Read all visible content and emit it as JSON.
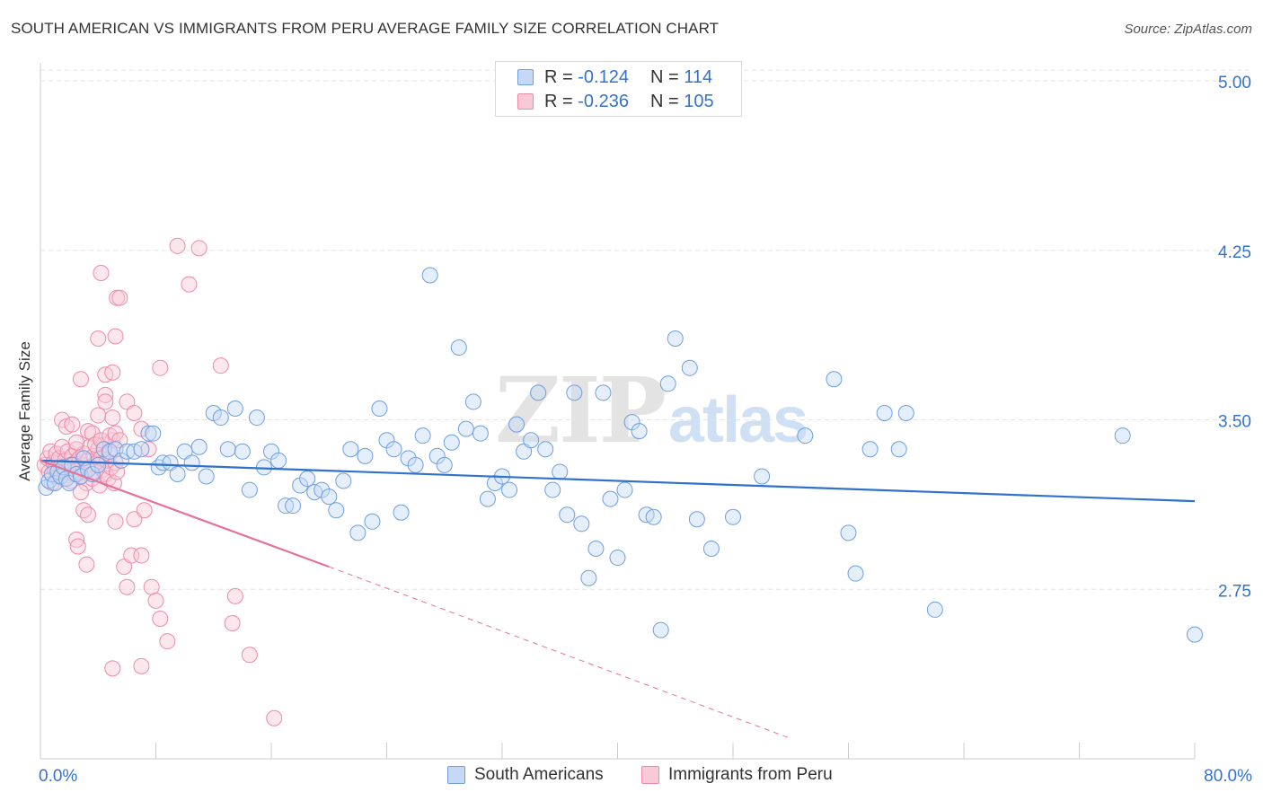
{
  "header": {
    "title": "SOUTH AMERICAN VS IMMIGRANTS FROM PERU AVERAGE FAMILY SIZE CORRELATION CHART",
    "source": "Source: ZipAtlas.com"
  },
  "watermark": {
    "part1": "ZIP",
    "part2": "atlas"
  },
  "stats_legend": {
    "series1": {
      "r_label": "R =",
      "r_value": "-0.124",
      "n_label": "N =",
      "n_value": "114"
    },
    "series2": {
      "r_label": "R =",
      "r_value": "-0.236",
      "n_label": "N =",
      "n_value": "105"
    }
  },
  "colors": {
    "blue": "#6f9fe0",
    "blue_fill": "#c5d9f6",
    "blue_line": "#2f72cc",
    "pink": "#ee8aa9",
    "pink_fill": "#f8cad8",
    "pink_line": "#e5729b",
    "tick_text": "#3572c9",
    "grid": "#e3e3e3"
  },
  "chart_data": {
    "type": "scatter",
    "title": "SOUTH AMERICAN VS IMMIGRANTS FROM PERU AVERAGE FAMILY SIZE CORRELATION CHART",
    "xlabel": "",
    "ylabel": "Average Family Size",
    "xlim": [
      0,
      80
    ],
    "ylim": [
      2.0,
      5.08
    ],
    "x_tick_labels": [
      "0.0%",
      "80.0%"
    ],
    "y_ticks": [
      2.75,
      3.5,
      4.25,
      5.0
    ],
    "y_tick_labels": [
      "2.75",
      "3.50",
      "4.25",
      "5.00"
    ],
    "grid": true,
    "legend": [
      "South Americans",
      "Immigrants from Peru"
    ],
    "legend_position": "bottom-center",
    "series": [
      {
        "name": "South Americans",
        "r": -0.124,
        "n": 114,
        "trend": {
          "x": [
            0,
            80
          ],
          "y": [
            3.32,
            3.14
          ]
        },
        "points": [
          [
            0.4,
            3.2
          ],
          [
            0.6,
            3.23
          ],
          [
            0.8,
            3.26
          ],
          [
            1.0,
            3.22
          ],
          [
            1.2,
            3.27
          ],
          [
            1.4,
            3.25
          ],
          [
            1.6,
            3.29
          ],
          [
            1.8,
            3.24
          ],
          [
            2.0,
            3.22
          ],
          [
            2.2,
            3.3
          ],
          [
            2.5,
            3.26
          ],
          [
            2.8,
            3.25
          ],
          [
            3.0,
            3.33
          ],
          [
            3.3,
            3.28
          ],
          [
            3.6,
            3.26
          ],
          [
            4.0,
            3.3
          ],
          [
            4.4,
            3.37
          ],
          [
            4.8,
            3.36
          ],
          [
            5.2,
            3.37
          ],
          [
            5.6,
            3.32
          ],
          [
            6.0,
            3.36
          ],
          [
            6.5,
            3.36
          ],
          [
            7.0,
            3.37
          ],
          [
            7.5,
            3.44
          ],
          [
            7.8,
            3.44
          ],
          [
            8.2,
            3.29
          ],
          [
            8.5,
            3.31
          ],
          [
            9.0,
            3.31
          ],
          [
            9.5,
            3.26
          ],
          [
            10.0,
            3.36
          ],
          [
            10.5,
            3.31
          ],
          [
            11.0,
            3.38
          ],
          [
            11.5,
            3.25
          ],
          [
            12.0,
            3.53
          ],
          [
            12.5,
            3.51
          ],
          [
            13.0,
            3.37
          ],
          [
            13.5,
            3.55
          ],
          [
            14.0,
            3.36
          ],
          [
            14.5,
            3.19
          ],
          [
            15.0,
            3.51
          ],
          [
            15.5,
            3.29
          ],
          [
            16.0,
            3.36
          ],
          [
            16.5,
            3.32
          ],
          [
            17.0,
            3.12
          ],
          [
            17.5,
            3.12
          ],
          [
            18.0,
            3.21
          ],
          [
            18.5,
            3.24
          ],
          [
            19.0,
            3.18
          ],
          [
            19.5,
            3.19
          ],
          [
            20.0,
            3.16
          ],
          [
            20.5,
            3.1
          ],
          [
            21.0,
            3.23
          ],
          [
            21.5,
            3.37
          ],
          [
            22.0,
            3.0
          ],
          [
            22.5,
            3.34
          ],
          [
            23.0,
            3.05
          ],
          [
            23.5,
            3.55
          ],
          [
            24.0,
            3.41
          ],
          [
            24.5,
            3.37
          ],
          [
            25.0,
            3.09
          ],
          [
            25.5,
            3.33
          ],
          [
            26.0,
            3.3
          ],
          [
            26.5,
            3.43
          ],
          [
            27.0,
            4.14
          ],
          [
            27.5,
            3.34
          ],
          [
            28.0,
            3.3
          ],
          [
            28.5,
            3.4
          ],
          [
            29.0,
            3.82
          ],
          [
            29.5,
            3.46
          ],
          [
            30.0,
            3.58
          ],
          [
            30.5,
            3.44
          ],
          [
            31.0,
            3.15
          ],
          [
            31.5,
            3.22
          ],
          [
            32.0,
            3.25
          ],
          [
            32.5,
            3.19
          ],
          [
            33.0,
            3.48
          ],
          [
            33.5,
            3.36
          ],
          [
            34.0,
            3.41
          ],
          [
            34.5,
            3.62
          ],
          [
            35.0,
            3.37
          ],
          [
            35.5,
            3.19
          ],
          [
            36.0,
            3.27
          ],
          [
            36.5,
            3.08
          ],
          [
            37.0,
            3.62
          ],
          [
            37.5,
            3.04
          ],
          [
            38.0,
            2.8
          ],
          [
            38.5,
            2.93
          ],
          [
            39.0,
            3.62
          ],
          [
            39.5,
            3.15
          ],
          [
            40.0,
            2.89
          ],
          [
            40.5,
            3.19
          ],
          [
            41.0,
            3.49
          ],
          [
            41.5,
            3.45
          ],
          [
            42.0,
            3.08
          ],
          [
            42.5,
            3.07
          ],
          [
            43.0,
            2.57
          ],
          [
            43.5,
            3.66
          ],
          [
            44.0,
            3.86
          ],
          [
            45.0,
            3.73
          ],
          [
            45.5,
            3.06
          ],
          [
            46.5,
            2.93
          ],
          [
            48.0,
            3.07
          ],
          [
            50.0,
            3.25
          ],
          [
            53.0,
            3.43
          ],
          [
            55.0,
            3.68
          ],
          [
            56.0,
            3.0
          ],
          [
            56.5,
            2.82
          ],
          [
            57.5,
            3.37
          ],
          [
            58.5,
            3.53
          ],
          [
            59.5,
            3.37
          ],
          [
            60.0,
            3.53
          ],
          [
            62.0,
            2.66
          ],
          [
            75.0,
            3.43
          ],
          [
            80.0,
            2.55
          ]
        ]
      },
      {
        "name": "Immigrants from Peru",
        "r": -0.236,
        "n": 105,
        "trend": {
          "x": [
            0,
            20
          ],
          "y": [
            3.32,
            2.85
          ]
        },
        "trend_dashed": {
          "x": [
            20,
            52
          ],
          "y": [
            2.85,
            2.09
          ]
        },
        "points": [
          [
            0.3,
            3.3
          ],
          [
            0.5,
            3.33
          ],
          [
            0.6,
            3.27
          ],
          [
            0.7,
            3.36
          ],
          [
            0.8,
            3.22
          ],
          [
            0.9,
            3.31
          ],
          [
            1.0,
            3.28
          ],
          [
            1.1,
            3.35
          ],
          [
            1.2,
            3.25
          ],
          [
            1.3,
            3.33
          ],
          [
            1.4,
            3.29
          ],
          [
            1.5,
            3.38
          ],
          [
            1.6,
            3.24
          ],
          [
            1.7,
            3.32
          ],
          [
            1.8,
            3.27
          ],
          [
            1.9,
            3.36
          ],
          [
            2.0,
            3.3
          ],
          [
            2.1,
            3.23
          ],
          [
            2.2,
            3.34
          ],
          [
            2.3,
            3.26
          ],
          [
            2.4,
            3.31
          ],
          [
            2.5,
            3.37
          ],
          [
            2.6,
            3.28
          ],
          [
            2.7,
            3.33
          ],
          [
            2.8,
            3.25
          ],
          [
            2.9,
            3.3
          ],
          [
            3.0,
            3.35
          ],
          [
            3.1,
            3.27
          ],
          [
            3.2,
            3.22
          ],
          [
            3.3,
            3.32
          ],
          [
            3.4,
            3.38
          ],
          [
            3.5,
            3.29
          ],
          [
            3.6,
            3.24
          ],
          [
            3.7,
            3.34
          ],
          [
            3.8,
            3.27
          ],
          [
            3.9,
            3.31
          ],
          [
            4.0,
            3.37
          ],
          [
            4.1,
            3.21
          ],
          [
            4.2,
            3.33
          ],
          [
            4.3,
            3.28
          ],
          [
            4.4,
            3.39
          ],
          [
            4.5,
            3.26
          ],
          [
            4.6,
            3.32
          ],
          [
            4.7,
            3.24
          ],
          [
            4.8,
            3.35
          ],
          [
            4.9,
            3.29
          ],
          [
            5.0,
            3.41
          ],
          [
            5.1,
            3.22
          ],
          [
            5.2,
            3.31
          ],
          [
            5.3,
            3.27
          ],
          [
            1.5,
            3.5
          ],
          [
            1.8,
            3.47
          ],
          [
            2.2,
            3.48
          ],
          [
            2.5,
            3.4
          ],
          [
            2.8,
            3.18
          ],
          [
            3.0,
            3.1
          ],
          [
            3.3,
            3.45
          ],
          [
            3.6,
            3.44
          ],
          [
            3.8,
            3.39
          ],
          [
            4.0,
            3.52
          ],
          [
            4.2,
            3.41
          ],
          [
            4.5,
            3.61
          ],
          [
            4.8,
            3.43
          ],
          [
            5.0,
            3.51
          ],
          [
            5.2,
            3.44
          ],
          [
            5.5,
            3.41
          ],
          [
            6.0,
            3.58
          ],
          [
            6.5,
            3.53
          ],
          [
            7.0,
            3.46
          ],
          [
            7.5,
            3.37
          ],
          [
            2.8,
            3.68
          ],
          [
            4.0,
            3.86
          ],
          [
            4.2,
            4.15
          ],
          [
            4.5,
            3.7
          ],
          [
            5.0,
            3.71
          ],
          [
            5.2,
            3.87
          ],
          [
            5.3,
            4.04
          ],
          [
            5.5,
            4.04
          ],
          [
            8.3,
            3.73
          ],
          [
            12.5,
            3.74
          ],
          [
            9.5,
            4.27
          ],
          [
            10.3,
            4.1
          ],
          [
            11.0,
            4.26
          ],
          [
            4.5,
            3.58
          ],
          [
            2.5,
            2.97
          ],
          [
            2.6,
            2.94
          ],
          [
            3.2,
            2.86
          ],
          [
            3.3,
            3.08
          ],
          [
            5.2,
            3.05
          ],
          [
            5.8,
            2.85
          ],
          [
            6.3,
            2.9
          ],
          [
            6.5,
            3.06
          ],
          [
            7.0,
            2.9
          ],
          [
            7.2,
            3.1
          ],
          [
            6.0,
            2.76
          ],
          [
            7.7,
            2.76
          ],
          [
            8.0,
            2.7
          ],
          [
            8.3,
            2.62
          ],
          [
            8.8,
            2.52
          ],
          [
            5.0,
            2.4
          ],
          [
            7.0,
            2.41
          ],
          [
            13.5,
            2.72
          ],
          [
            13.3,
            2.6
          ],
          [
            14.5,
            2.46
          ],
          [
            16.2,
            2.18
          ]
        ]
      }
    ]
  },
  "bottom_legend": {
    "item1": "South Americans",
    "item2": "Immigrants from Peru"
  }
}
